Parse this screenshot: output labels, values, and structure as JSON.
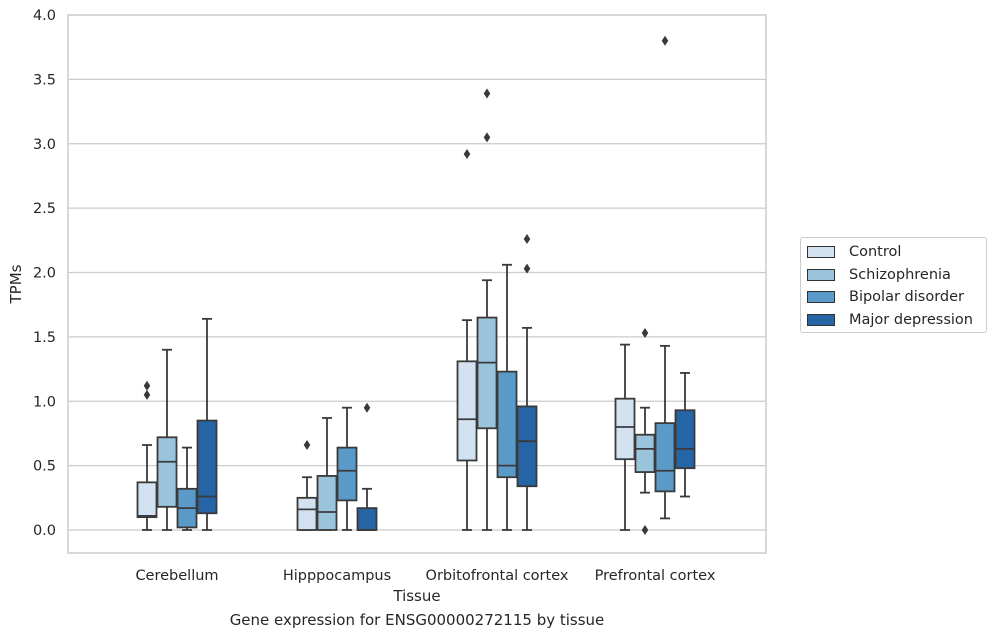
{
  "figure_title": "Gene expression for ENSG00000272115 by tissue",
  "chart_data": {
    "type": "boxplot",
    "xlabel": "Tissue",
    "ylabel": "TPMs",
    "ylim": [
      -0.18,
      4.0
    ],
    "yticks": [
      "0.0",
      "0.5",
      "1.0",
      "1.5",
      "2.0",
      "2.5",
      "3.0",
      "3.5",
      "4.0"
    ],
    "grid": "horizontal",
    "legend_position": "outside-right",
    "categories": [
      "Cerebellum",
      "Hipppocampus",
      "Orbitofrontal cortex",
      "Prefrontal cortex"
    ],
    "series": [
      {
        "name": "Control",
        "color": "#d2e2f1",
        "boxes": [
          {
            "whisker_low": 0.0,
            "q1": 0.1,
            "median": 0.11,
            "q3": 0.37,
            "whisker_high": 0.66,
            "outliers": [
              1.12,
              1.05
            ]
          },
          {
            "whisker_low": 0.0,
            "q1": 0.0,
            "median": 0.16,
            "q3": 0.25,
            "whisker_high": 0.41,
            "outliers": [
              0.66
            ]
          },
          {
            "whisker_low": 0.0,
            "q1": 0.54,
            "median": 0.86,
            "q3": 1.31,
            "whisker_high": 1.63,
            "outliers": [
              2.92
            ]
          },
          {
            "whisker_low": 0.0,
            "q1": 0.55,
            "median": 0.8,
            "q3": 1.02,
            "whisker_high": 1.44,
            "outliers": []
          }
        ]
      },
      {
        "name": "Schizophrenia",
        "color": "#9ac3dc",
        "boxes": [
          {
            "whisker_low": 0.0,
            "q1": 0.18,
            "median": 0.53,
            "q3": 0.72,
            "whisker_high": 1.4,
            "outliers": []
          },
          {
            "whisker_low": 0.0,
            "q1": 0.0,
            "median": 0.14,
            "q3": 0.42,
            "whisker_high": 0.87,
            "outliers": []
          },
          {
            "whisker_low": 0.0,
            "q1": 0.79,
            "median": 1.3,
            "q3": 1.65,
            "whisker_high": 1.94,
            "outliers": [
              3.39,
              3.05
            ]
          },
          {
            "whisker_low": 0.29,
            "q1": 0.45,
            "median": 0.63,
            "q3": 0.74,
            "whisker_high": 0.95,
            "outliers": [
              1.53,
              0.0
            ]
          }
        ]
      },
      {
        "name": "Bipolar disorder",
        "color": "#5a9ac8",
        "boxes": [
          {
            "whisker_low": 0.0,
            "q1": 0.02,
            "median": 0.17,
            "q3": 0.32,
            "whisker_high": 0.64,
            "outliers": []
          },
          {
            "whisker_low": 0.0,
            "q1": 0.23,
            "median": 0.46,
            "q3": 0.64,
            "whisker_high": 0.95,
            "outliers": []
          },
          {
            "whisker_low": 0.0,
            "q1": 0.41,
            "median": 0.5,
            "q3": 1.23,
            "whisker_high": 2.06,
            "outliers": []
          },
          {
            "whisker_low": 0.09,
            "q1": 0.3,
            "median": 0.46,
            "q3": 0.83,
            "whisker_high": 1.43,
            "outliers": [
              3.8
            ]
          }
        ]
      },
      {
        "name": "Major depression",
        "color": "#2565a6",
        "boxes": [
          {
            "whisker_low": 0.0,
            "q1": 0.13,
            "median": 0.26,
            "q3": 0.85,
            "whisker_high": 1.64,
            "outliers": []
          },
          {
            "whisker_low": 0.0,
            "q1": 0.0,
            "median": 0.0,
            "q3": 0.17,
            "whisker_high": 0.32,
            "outliers": [
              0.95
            ]
          },
          {
            "whisker_low": 0.0,
            "q1": 0.34,
            "median": 0.69,
            "q3": 0.96,
            "whisker_high": 1.57,
            "outliers": [
              2.26,
              2.03
            ]
          },
          {
            "whisker_low": 0.26,
            "q1": 0.48,
            "median": 0.63,
            "q3": 0.93,
            "whisker_high": 1.22,
            "outliers": []
          }
        ]
      }
    ]
  }
}
